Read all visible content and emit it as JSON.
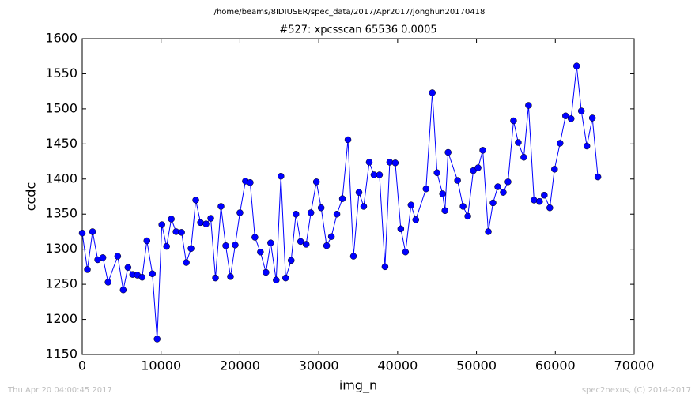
{
  "chart_data": {
    "type": "line",
    "suptitle": "/home/beams/8IDIUSER/spec_data/2017/Apr2017/jonghun20170418",
    "title": "#527: xpcsscan 65536 0.0005",
    "x_label": "img_n",
    "y_label": "ccdc",
    "xlim": [
      0,
      70000
    ],
    "xticks": [
      0,
      10000,
      20000,
      30000,
      40000,
      50000,
      60000,
      70000
    ],
    "ylim": [
      1150,
      1600
    ],
    "yticks": [
      1150,
      1200,
      1250,
      1300,
      1350,
      1400,
      1450,
      1500,
      1550,
      1600
    ],
    "grid": false,
    "x": [
      0,
      655,
      1311,
      1966,
      2621,
      3277,
      4500,
      5200,
      5800,
      6400,
      7000,
      7600,
      8200,
      8900,
      9500,
      10100,
      10700,
      11300,
      11900,
      12600,
      13200,
      13800,
      14400,
      15000,
      15700,
      16300,
      16900,
      17600,
      18200,
      18800,
      19400,
      20000,
      20700,
      21300,
      21900,
      22600,
      23300,
      23900,
      24600,
      25200,
      25800,
      26500,
      27100,
      27700,
      28400,
      29000,
      29700,
      30300,
      31000,
      31600,
      32300,
      33000,
      33700,
      34400,
      35100,
      35700,
      36400,
      37000,
      37700,
      38400,
      39000,
      39700,
      40400,
      41000,
      41700,
      42300,
      43600,
      44400,
      45000,
      45700,
      46000,
      46400,
      47600,
      48300,
      48900,
      49600,
      50200,
      50800,
      51500,
      52100,
      52700,
      53400,
      54000,
      54700,
      55300,
      56000,
      56600,
      57300,
      58000,
      58600,
      59300,
      59900,
      60600,
      61300,
      62000,
      62700,
      63300,
      64000,
      64700,
      65400
    ],
    "series": [
      {
        "name": "ccdc",
        "color": "#0000ff",
        "marker": "o",
        "values": [
          1323,
          1271,
          1325,
          1285,
          1288,
          1253,
          1290,
          1242,
          1274,
          1264,
          1263,
          1260,
          1312,
          1265,
          1172,
          1335,
          1304,
          1343,
          1325,
          1324,
          1281,
          1301,
          1370,
          1338,
          1336,
          1344,
          1259,
          1361,
          1305,
          1261,
          1306,
          1352,
          1397,
          1395,
          1317,
          1296,
          1267,
          1309,
          1256,
          1404,
          1259,
          1284,
          1350,
          1311,
          1307,
          1352,
          1396,
          1359,
          1305,
          1318,
          1350,
          1372,
          1456,
          1290,
          1381,
          1361,
          1424,
          1406,
          1406,
          1275,
          1424,
          1423,
          1329,
          1296,
          1363,
          1342,
          1386,
          1523,
          1409,
          1379,
          1355,
          1438,
          1398,
          1361,
          1347,
          1412,
          1416,
          1441,
          1325,
          1366,
          1389,
          1381,
          1396,
          1483,
          1452,
          1431,
          1505,
          1370,
          1368,
          1377,
          1359,
          1414,
          1451,
          1490,
          1486,
          1561,
          1497,
          1447,
          1487,
          1403
        ]
      }
    ]
  },
  "footer": {
    "timestamp": "Thu Apr 20 04:00:45 2017",
    "credit": "spec2nexus, (C) 2014-2017"
  }
}
